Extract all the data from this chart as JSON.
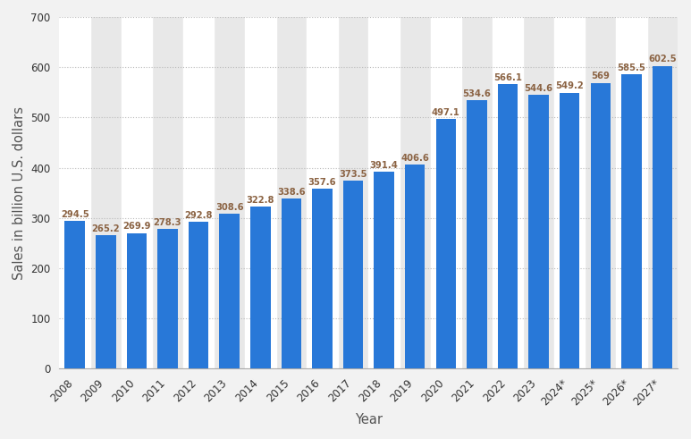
{
  "years": [
    "2008",
    "2009",
    "2010",
    "2011",
    "2012",
    "2013",
    "2014",
    "2015",
    "2016",
    "2017",
    "2018",
    "2019",
    "2020",
    "2021",
    "2022",
    "2023",
    "2024*",
    "2025*",
    "2026*",
    "2027*"
  ],
  "values": [
    294.5,
    265.2,
    269.9,
    278.3,
    292.8,
    308.6,
    322.8,
    338.6,
    357.6,
    373.5,
    391.4,
    406.6,
    497.1,
    534.6,
    566.1,
    544.6,
    549.2,
    569,
    585.5,
    602.5
  ],
  "bar_color": "#2878d8",
  "label_color": "#8b6343",
  "ylabel": "Sales in billion U.S. dollars",
  "xlabel": "Year",
  "ylim": [
    0,
    700
  ],
  "yticks": [
    0,
    100,
    200,
    300,
    400,
    500,
    600,
    700
  ],
  "background_color": "#f2f2f2",
  "plot_bg_color": "#e8e8e8",
  "white_stripe_color": "#ffffff",
  "grid_color": "#bbbbbb",
  "bar_label_fontsize": 7.2,
  "axis_label_fontsize": 10.5,
  "tick_fontsize": 8.5
}
